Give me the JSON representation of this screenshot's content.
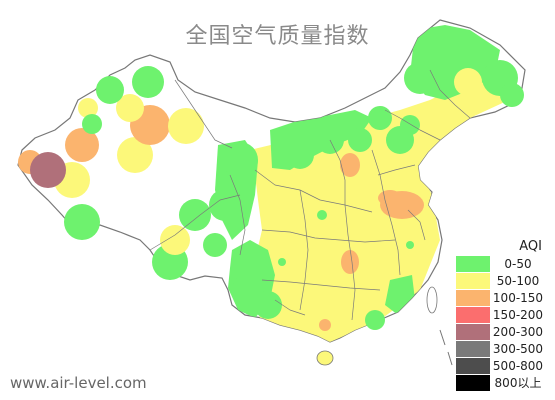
{
  "title": "全国空气质量指数",
  "watermark": "www.air-level.com",
  "legend": {
    "title": "AQI",
    "items": [
      {
        "label": "0-50",
        "color": "#6ef26e"
      },
      {
        "label": "50-100",
        "color": "#fcf87a"
      },
      {
        "label": "100-150",
        "color": "#fbb46e"
      },
      {
        "label": "150-200",
        "color": "#fb6e6e"
      },
      {
        "label": "200-300",
        "color": "#b0707a"
      },
      {
        "label": "300-500",
        "color": "#7a7a7a"
      },
      {
        "label": "500-800",
        "color": "#4d4d4d"
      },
      {
        "label": "800以上",
        "color": "#000000"
      }
    ]
  }
}
